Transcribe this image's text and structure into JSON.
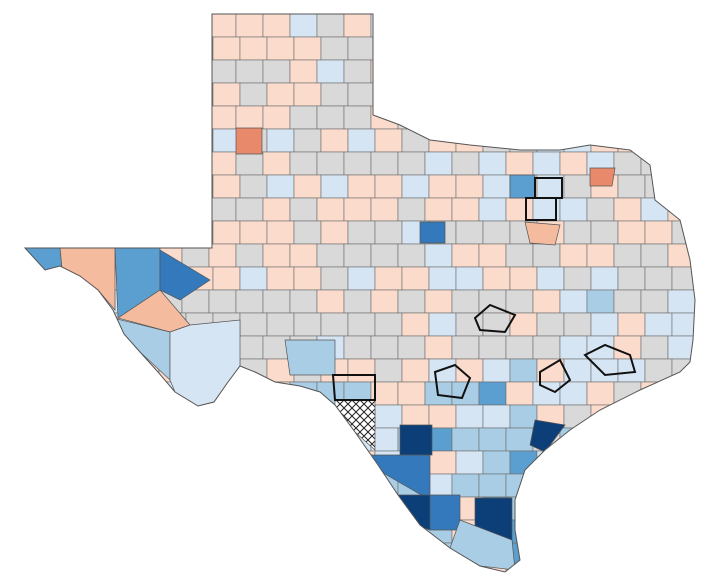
{
  "map": {
    "region": "Texas counties",
    "palette": {
      "no_data": "#d9d9d9",
      "light_orange": "#fbdccc",
      "orange": "#f5bb9f",
      "red_orange": "#e8896b",
      "lightest_blue": "#d6e5f3",
      "light_blue": "#a9cde4",
      "mid_blue": "#5b9fd0",
      "blue": "#3479bb",
      "dark_blue": "#0c3e78",
      "border": "#6b6b6b",
      "highlight_border": "#111111"
    },
    "hatched_county_pattern": "crosshatch"
  }
}
